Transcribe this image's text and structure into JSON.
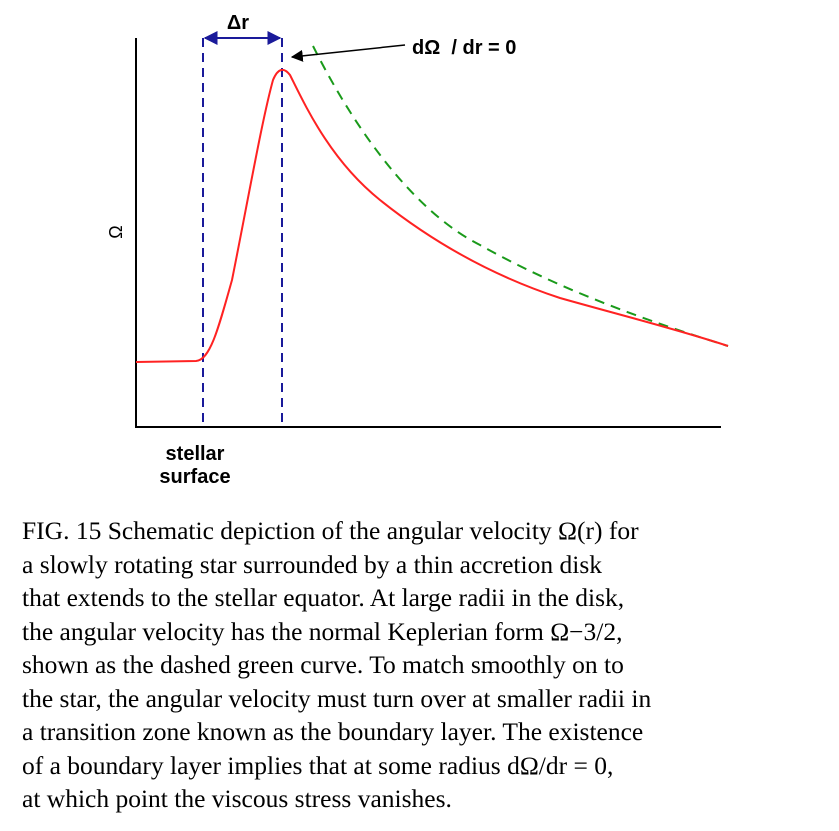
{
  "figure": {
    "axis_label_y": "Ω",
    "delta_r_label": "Δr",
    "derivative_label": "dΩ  / dr = 0",
    "surface_label_line1": "stellar",
    "surface_label_line2": "surface",
    "colors": {
      "solid_curve": "#ff2222",
      "dashed_curve": "#1a9a1a",
      "vertical_markers": "#1a1a9a",
      "axes": "#000000"
    }
  },
  "caption": {
    "lines": [
      "FIG. 15 Schematic depiction of the angular velocity Ω(r) for",
      "a slowly rotating star surrounded by a thin accretion disk",
      "that extends to the stellar equator. At large radii in the disk,",
      "the angular velocity has the normal Keplerian form Ω−3/2,",
      "shown as the dashed green curve. To match smoothly on to",
      "the star, the angular velocity must turn over at smaller radii in",
      "a transition zone known as the boundary layer. The existence",
      "of a boundary layer implies that at some radius dΩ/dr = 0,",
      "at which point the viscous stress vanishes."
    ]
  }
}
